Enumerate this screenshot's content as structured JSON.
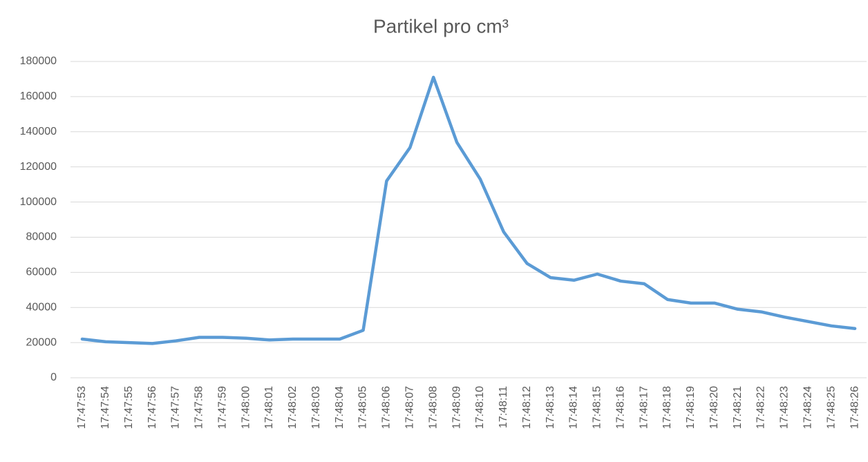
{
  "chart_data": {
    "type": "line",
    "title": "Partikel pro cm³",
    "categories": [
      "17:47:53",
      "17:47:54",
      "17:47:55",
      "17:47:56",
      "17:47:57",
      "17:47:58",
      "17:47:59",
      "17:48:00",
      "17:48:01",
      "17:48:02",
      "17:48:03",
      "17:48:04",
      "17:48:05",
      "17:48:06",
      "17:48:07",
      "17:48:08",
      "17:48:09",
      "17:48:10",
      "17:48:11",
      "17:48:12",
      "17:48:13",
      "17:48:14",
      "17:48:15",
      "17:48:16",
      "17:48:17",
      "17:48:18",
      "17:48:19",
      "17:48:20",
      "17:48:21",
      "17:48:22",
      "17:48:23",
      "17:48:24",
      "17:48:25",
      "17:48:26"
    ],
    "values": [
      22000,
      20500,
      20000,
      19500,
      21000,
      23000,
      23000,
      22500,
      21500,
      22000,
      22000,
      22000,
      27000,
      112000,
      131000,
      171000,
      134000,
      113000,
      83000,
      65000,
      57000,
      55500,
      59000,
      55000,
      53500,
      44500,
      42500,
      42500,
      39000,
      37500,
      34500,
      32000,
      29500,
      28000
    ],
    "color": "#5b9bd5",
    "ylim": [
      0,
      180000
    ],
    "yticks": [
      0,
      20000,
      40000,
      60000,
      80000,
      100000,
      120000,
      140000,
      160000,
      180000
    ],
    "grid": true
  }
}
